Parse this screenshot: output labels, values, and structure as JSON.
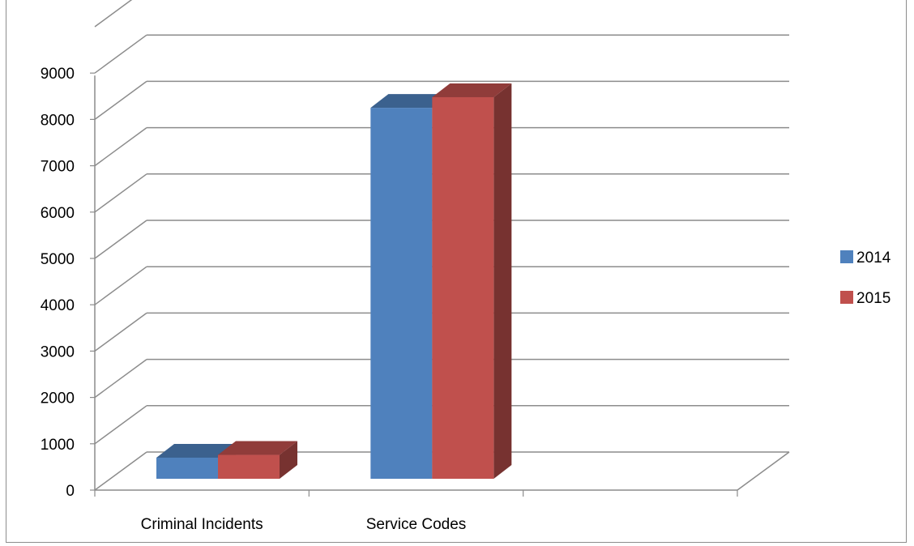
{
  "chart_data": {
    "type": "bar",
    "categories": [
      "Criminal Incidents",
      "Service Codes"
    ],
    "series": [
      {
        "name": "2014",
        "values": [
          700,
          8250
        ],
        "color": "#4f81bd"
      },
      {
        "name": "2015",
        "values": [
          760,
          8480
        ],
        "color": "#c0504d"
      }
    ],
    "y_ticks": [
      0,
      1000,
      2000,
      3000,
      4000,
      5000,
      6000,
      7000,
      8000,
      9000
    ],
    "ylim": [
      0,
      10000
    ],
    "grid": true,
    "three_d": true,
    "legend_position": "right"
  }
}
